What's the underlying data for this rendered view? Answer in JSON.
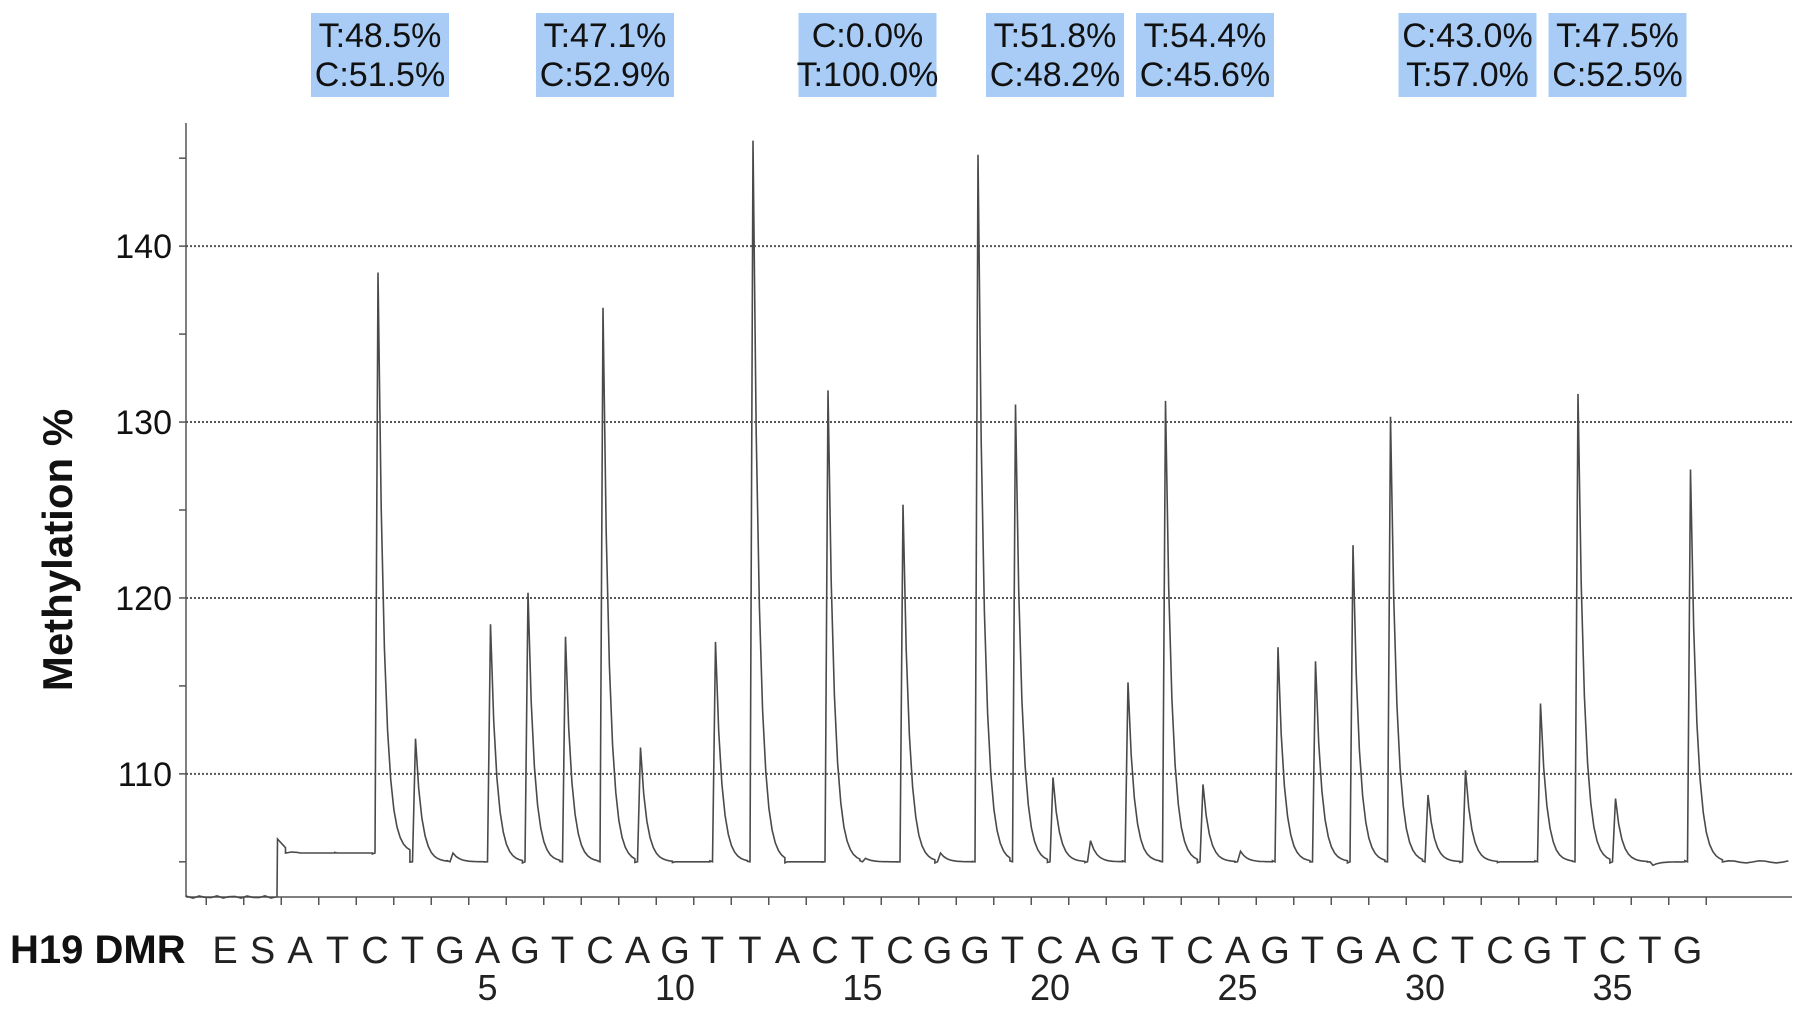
{
  "chart_data": {
    "type": "line",
    "ylabel": "Methylation %",
    "xlabel": "",
    "row_title": "H19 DMR",
    "ylim": [
      103,
      147
    ],
    "yticks": [
      110,
      120,
      130,
      140
    ],
    "grid": "horizontal dotted at y ticks",
    "dispensation": [
      "E",
      "S",
      "A",
      "T",
      "C",
      "T",
      "G",
      "A",
      "G",
      "T",
      "C",
      "A",
      "G",
      "T",
      "T",
      "A",
      "C",
      "T",
      "C",
      "G",
      "G",
      "T",
      "C",
      "A",
      "G",
      "T",
      "C",
      "A",
      "G",
      "T",
      "G",
      "A",
      "C",
      "T",
      "C",
      "G",
      "T",
      "C",
      "T",
      "G"
    ],
    "position_labels": [
      {
        "x": 5,
        "label": "5"
      },
      {
        "x": 10,
        "label": "10"
      },
      {
        "x": 15,
        "label": "15"
      },
      {
        "x": 20,
        "label": "20"
      },
      {
        "x": 25,
        "label": "25"
      },
      {
        "x": 30,
        "label": "30"
      },
      {
        "x": 35,
        "label": "35"
      }
    ],
    "series": [
      {
        "values": [
          103.0,
          103.0,
          105.5,
          105.5,
          138.5,
          112.0,
          105.5,
          118.5,
          120.3,
          117.8,
          136.5,
          111.5,
          105.0,
          117.5,
          146.0,
          105.0,
          131.8,
          105.2,
          125.3,
          105.5,
          145.2,
          131.0,
          109.8,
          106.2,
          115.2,
          131.2,
          109.4,
          105.6,
          117.2,
          116.4,
          123.0,
          130.3,
          108.8,
          110.2,
          105.0,
          114.0,
          131.6,
          108.6,
          104.8,
          127.3
        ]
      }
    ],
    "annotations": [
      {
        "x": 4,
        "lines": [
          "T:48.5%",
          "C:51.5%"
        ]
      },
      {
        "x": 10,
        "lines": [
          "T:47.1%",
          "C:52.9%"
        ]
      },
      {
        "x": 17,
        "lines": [
          "C:0.0%",
          "T:100.0%"
        ]
      },
      {
        "x": 22,
        "lines": [
          "T:51.8%",
          "C:48.2%"
        ]
      },
      {
        "x": 26,
        "lines": [
          "T:54.4%",
          "C:45.6%"
        ]
      },
      {
        "x": 33,
        "lines": [
          "C:43.0%",
          "T:57.0%"
        ]
      },
      {
        "x": 37,
        "lines": [
          "T:47.5%",
          "C:52.5%"
        ]
      }
    ],
    "annotation_color": "#a8ccf5",
    "trace_color": "#4a4a4a",
    "grid_color": "#555555"
  }
}
